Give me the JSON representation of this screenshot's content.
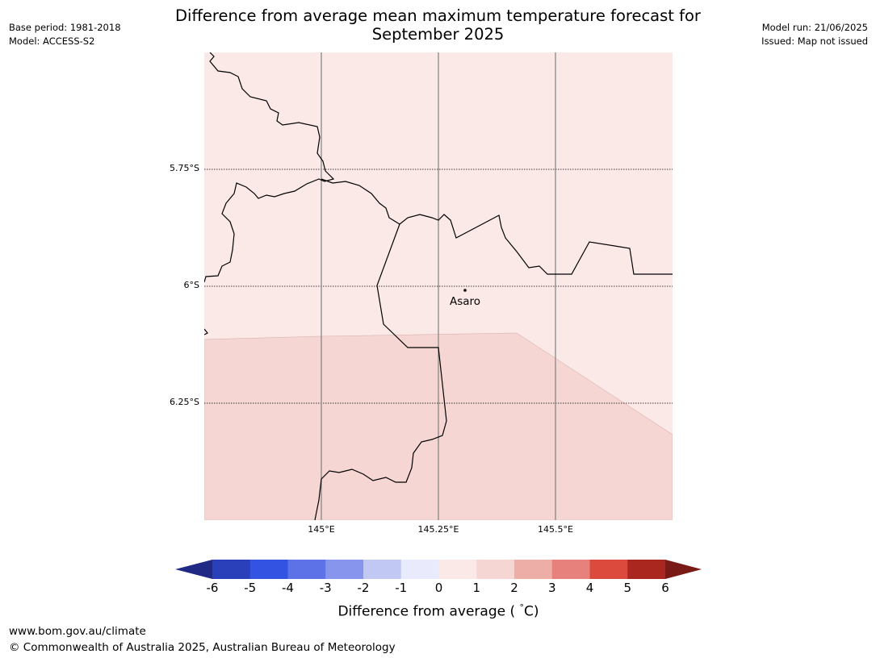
{
  "title_line1": "Difference from average mean maximum temperature forecast for",
  "title_line2": "September 2025",
  "base_period": "Base period: 1981-2018",
  "model": "Model: ACCESS-S2",
  "model_run": "Model run: 21/06/2025",
  "issued": "Issued: Map not issued",
  "map": {
    "lat_labels": [
      "5.75°S",
      "6°S",
      "6.25°S"
    ],
    "lon_labels": [
      "145°E",
      "145.25°E",
      "145.5°E"
    ],
    "places": [
      {
        "name": "Asaro",
        "lon": 145.306,
        "lat": -6.01
      }
    ],
    "colors": {
      "anomaly_0_1": "#fbe9e8",
      "anomaly_1_2": "#f5d6d3",
      "border": "#000000",
      "gridline": "#808080"
    }
  },
  "colorbar": {
    "ticks": [
      "-6",
      "-5",
      "-4",
      "-3",
      "-2",
      "-1",
      "0",
      "1",
      "2",
      "3",
      "4",
      "5",
      "6"
    ],
    "colors": [
      "#202a85",
      "#2a3fba",
      "#3353e2",
      "#5c72e6",
      "#8796ec",
      "#c0c8f3",
      "#e9ebfc",
      "#fbe9e8",
      "#f5d6d3",
      "#eeaea8",
      "#e6817c",
      "#dc4a3e",
      "#a9271f",
      "#7a1a17"
    ],
    "label": "Difference from average ( C)",
    "label_pre": "Difference from average (",
    "label_deg": "°",
    "label_post": "C)"
  },
  "footer_url": "www.bom.gov.au/climate",
  "footer_copyright": "© Commonwealth of Australia 2025, Australian Bureau of Meteorology"
}
